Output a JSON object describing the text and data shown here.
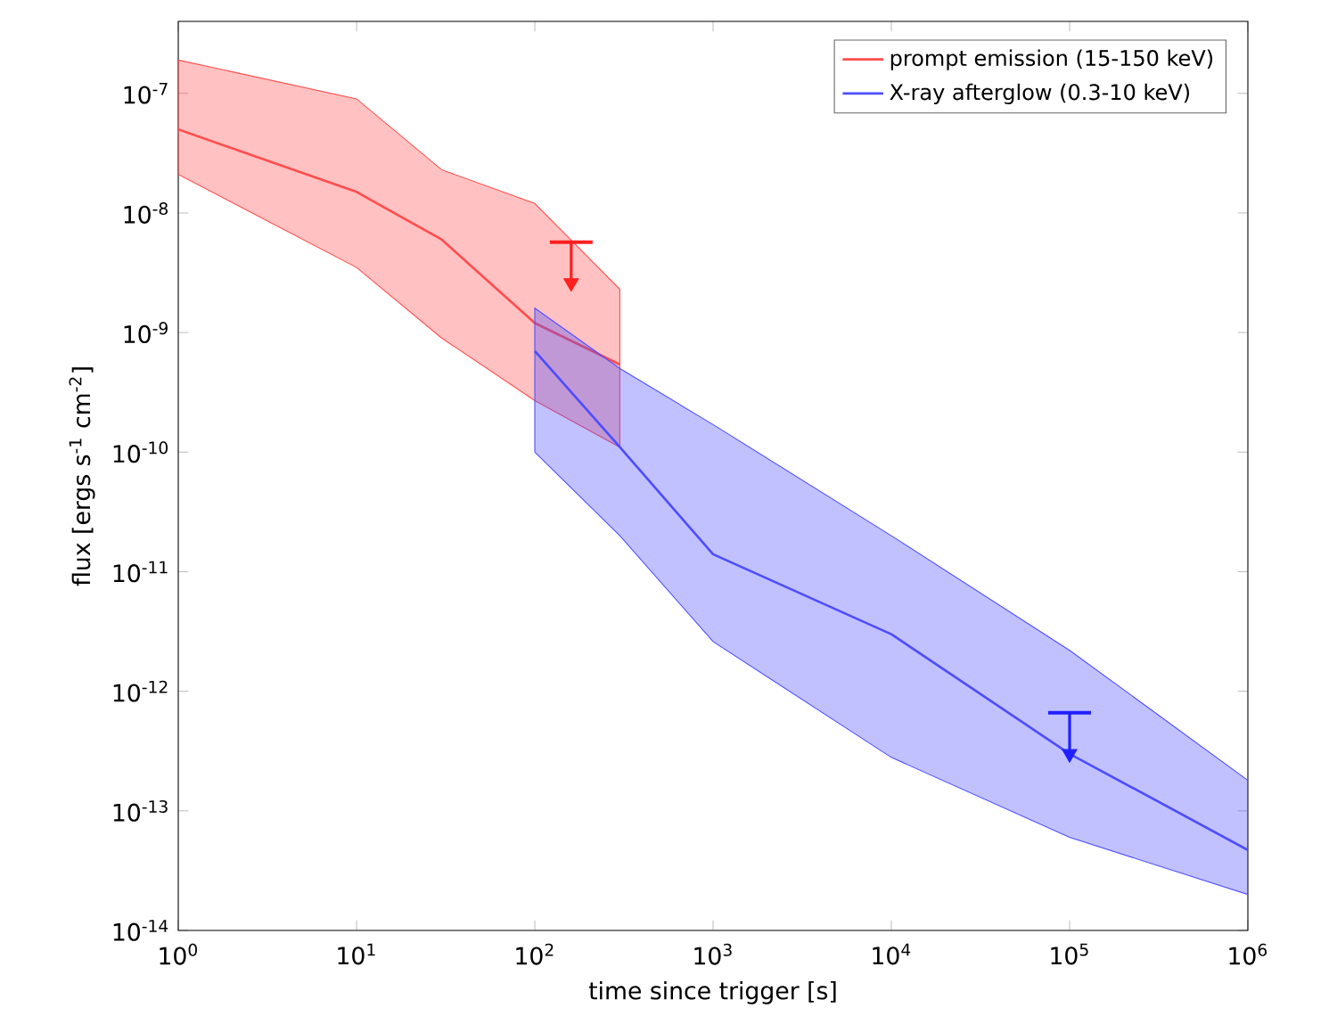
{
  "chart_data": {
    "type": "line",
    "xlabel": "time since trigger [s]",
    "ylabel": "flux [ergs s$^{-1}$ cm$^{-2}$]",
    "log": "xy",
    "grid": false,
    "legend": "top right",
    "marker": "none",
    "line_style": "solid",
    "xlim": [
      1,
      1000000
    ],
    "ylim": [
      1e-14,
      4e-07
    ],
    "xticks": [
      {
        "value": 1,
        "label": "10$^{0}$"
      },
      {
        "value": 10,
        "label": "10$^{1}$"
      },
      {
        "value": 100,
        "label": "10$^{2}$"
      },
      {
        "value": 1000,
        "label": "10$^{3}$"
      },
      {
        "value": 10000,
        "label": "10$^{4}$"
      },
      {
        "value": 100000,
        "label": "10$^{5}$"
      },
      {
        "value": 1000000,
        "label": "10$^{6}$"
      }
    ],
    "yticks": [
      {
        "value": 1e-14,
        "label": "10$^{-14}$"
      },
      {
        "value": 1e-13,
        "label": "10$^{-13}$"
      },
      {
        "value": 1e-12,
        "label": "10$^{-12}$"
      },
      {
        "value": 1e-11,
        "label": "10$^{-11}$"
      },
      {
        "value": 1e-10,
        "label": "10$^{-10}$"
      },
      {
        "value": 1e-09,
        "label": "10$^{-9}$"
      },
      {
        "value": 1e-08,
        "label": "10$^{-8}$"
      },
      {
        "value": 1e-07,
        "label": "10$^{-7}$"
      }
    ],
    "series": [
      {
        "name": "prompt emission (15-150 keV)",
        "color": "#ff4d4d",
        "x": [
          1,
          10,
          30,
          100,
          300
        ],
        "values": [
          5e-08,
          1.5e-08,
          6e-09,
          1.2e-09,
          5.4e-10
        ],
        "lower": [
          2.1e-08,
          3.5e-09,
          9e-10,
          2.7e-10,
          1.1e-10
        ],
        "upper": [
          1.9e-07,
          9e-08,
          2.3e-08,
          1.2e-08,
          2.3e-09
        ]
      },
      {
        "name": "X-ray afterglow (0.3-10 keV)",
        "color": "#4d4dff",
        "x": [
          100,
          300,
          1000,
          10000,
          100000,
          1000000
        ],
        "values": [
          7e-10,
          1.1e-10,
          1.4e-11,
          3e-12,
          3e-13,
          4.7e-14
        ],
        "lower": [
          1e-10,
          2e-11,
          2.6e-12,
          2.8e-13,
          6e-14,
          2e-14
        ],
        "upper": [
          1.6e-09,
          5e-10,
          1.7e-10,
          2e-11,
          2.2e-12,
          1.8e-13
        ]
      },
      {
        "type": "scatter",
        "marker": "triangle",
        "color": "#ff2020",
        "x": [
          160
        ],
        "values": [
          2.6e-09
        ],
        "errors": [
          [
            2.6e-09,
            5.7e-09
          ]
        ]
      },
      {
        "type": "scatter",
        "marker": "triangle",
        "color": "#2020ff",
        "x": [
          100000
        ],
        "values": [
          3e-13
        ],
        "errors": [
          [
            3e-13,
            6.6e-13
          ]
        ]
      }
    ]
  }
}
